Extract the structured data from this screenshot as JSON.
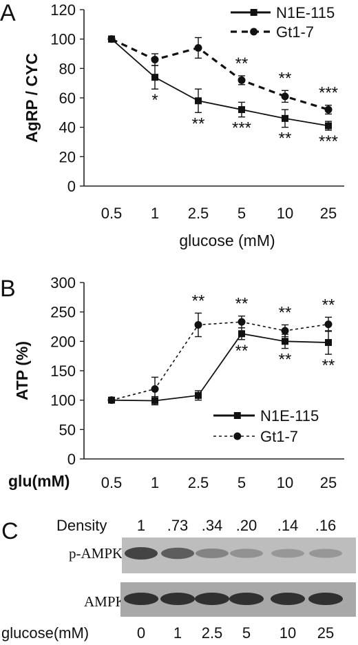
{
  "panels": {
    "a": "A",
    "b": "B",
    "c": "C"
  },
  "chart_data": [
    {
      "type": "line",
      "panel": "A",
      "categories": [
        "0.5",
        "1",
        "2.5",
        "5",
        "10",
        "25"
      ],
      "ylabel": "AgRP / CYC",
      "xlabel": "glucose (mM)",
      "ylim": [
        0,
        120
      ],
      "yticks": [
        "0",
        "20",
        "40",
        "60",
        "80",
        "100",
        "120"
      ],
      "legend": "top-right",
      "series": [
        {
          "name": "N1E-115",
          "style": "solid",
          "marker": "square",
          "values": [
            100,
            74,
            58,
            52,
            46,
            41
          ],
          "errors": [
            2,
            8,
            8,
            5,
            6,
            3
          ],
          "annotations": [
            "",
            "*",
            "**",
            "***",
            "**",
            "***"
          ]
        },
        {
          "name": "Gt1-7",
          "style": "dashed",
          "marker": "circle",
          "values": [
            100,
            86,
            94,
            72,
            61,
            52
          ],
          "errors": [
            2,
            4,
            7,
            3,
            4,
            3
          ],
          "annotations": [
            "",
            "",
            "",
            "**",
            "**",
            "***"
          ]
        }
      ],
      "extra_annotations": [
        "**",
        "***"
      ]
    },
    {
      "type": "line",
      "panel": "B",
      "categories": [
        "0.5",
        "1",
        "2.5",
        "5",
        "10",
        "25"
      ],
      "ylabel": "ATP (%)",
      "xlabel": "glu(mM)",
      "ylim": [
        0,
        300
      ],
      "yticks": [
        "0",
        "50",
        "100",
        "150",
        "200",
        "250",
        "300"
      ],
      "legend": "bottom-right",
      "series": [
        {
          "name": "N1E-115",
          "style": "solid",
          "marker": "square",
          "values": [
            100,
            99,
            108,
            213,
            200,
            198
          ],
          "errors": [
            3,
            7,
            8,
            10,
            12,
            20
          ],
          "annotations": [
            "",
            "",
            "",
            "**",
            "**",
            "**"
          ]
        },
        {
          "name": "Gt1-7",
          "style": "dotted",
          "marker": "circle",
          "values": [
            100,
            119,
            228,
            233,
            218,
            229
          ],
          "errors": [
            3,
            20,
            20,
            10,
            10,
            12
          ],
          "annotations": [
            "",
            "",
            "**",
            "**",
            "**",
            "**"
          ]
        }
      ]
    }
  ],
  "blot": {
    "density_label": "Density",
    "density_values": [
      "1",
      ".73",
      ".34",
      ".20",
      ".14",
      ".16"
    ],
    "densities_numeric": [
      1,
      0.73,
      0.34,
      0.2,
      0.14,
      0.16
    ],
    "row1_label": "p-AMPK",
    "row2_label": "AMPK",
    "x_label": "glucose(mM)",
    "lanes": [
      "0",
      "1",
      "2.5",
      "5",
      "10",
      "25"
    ]
  }
}
